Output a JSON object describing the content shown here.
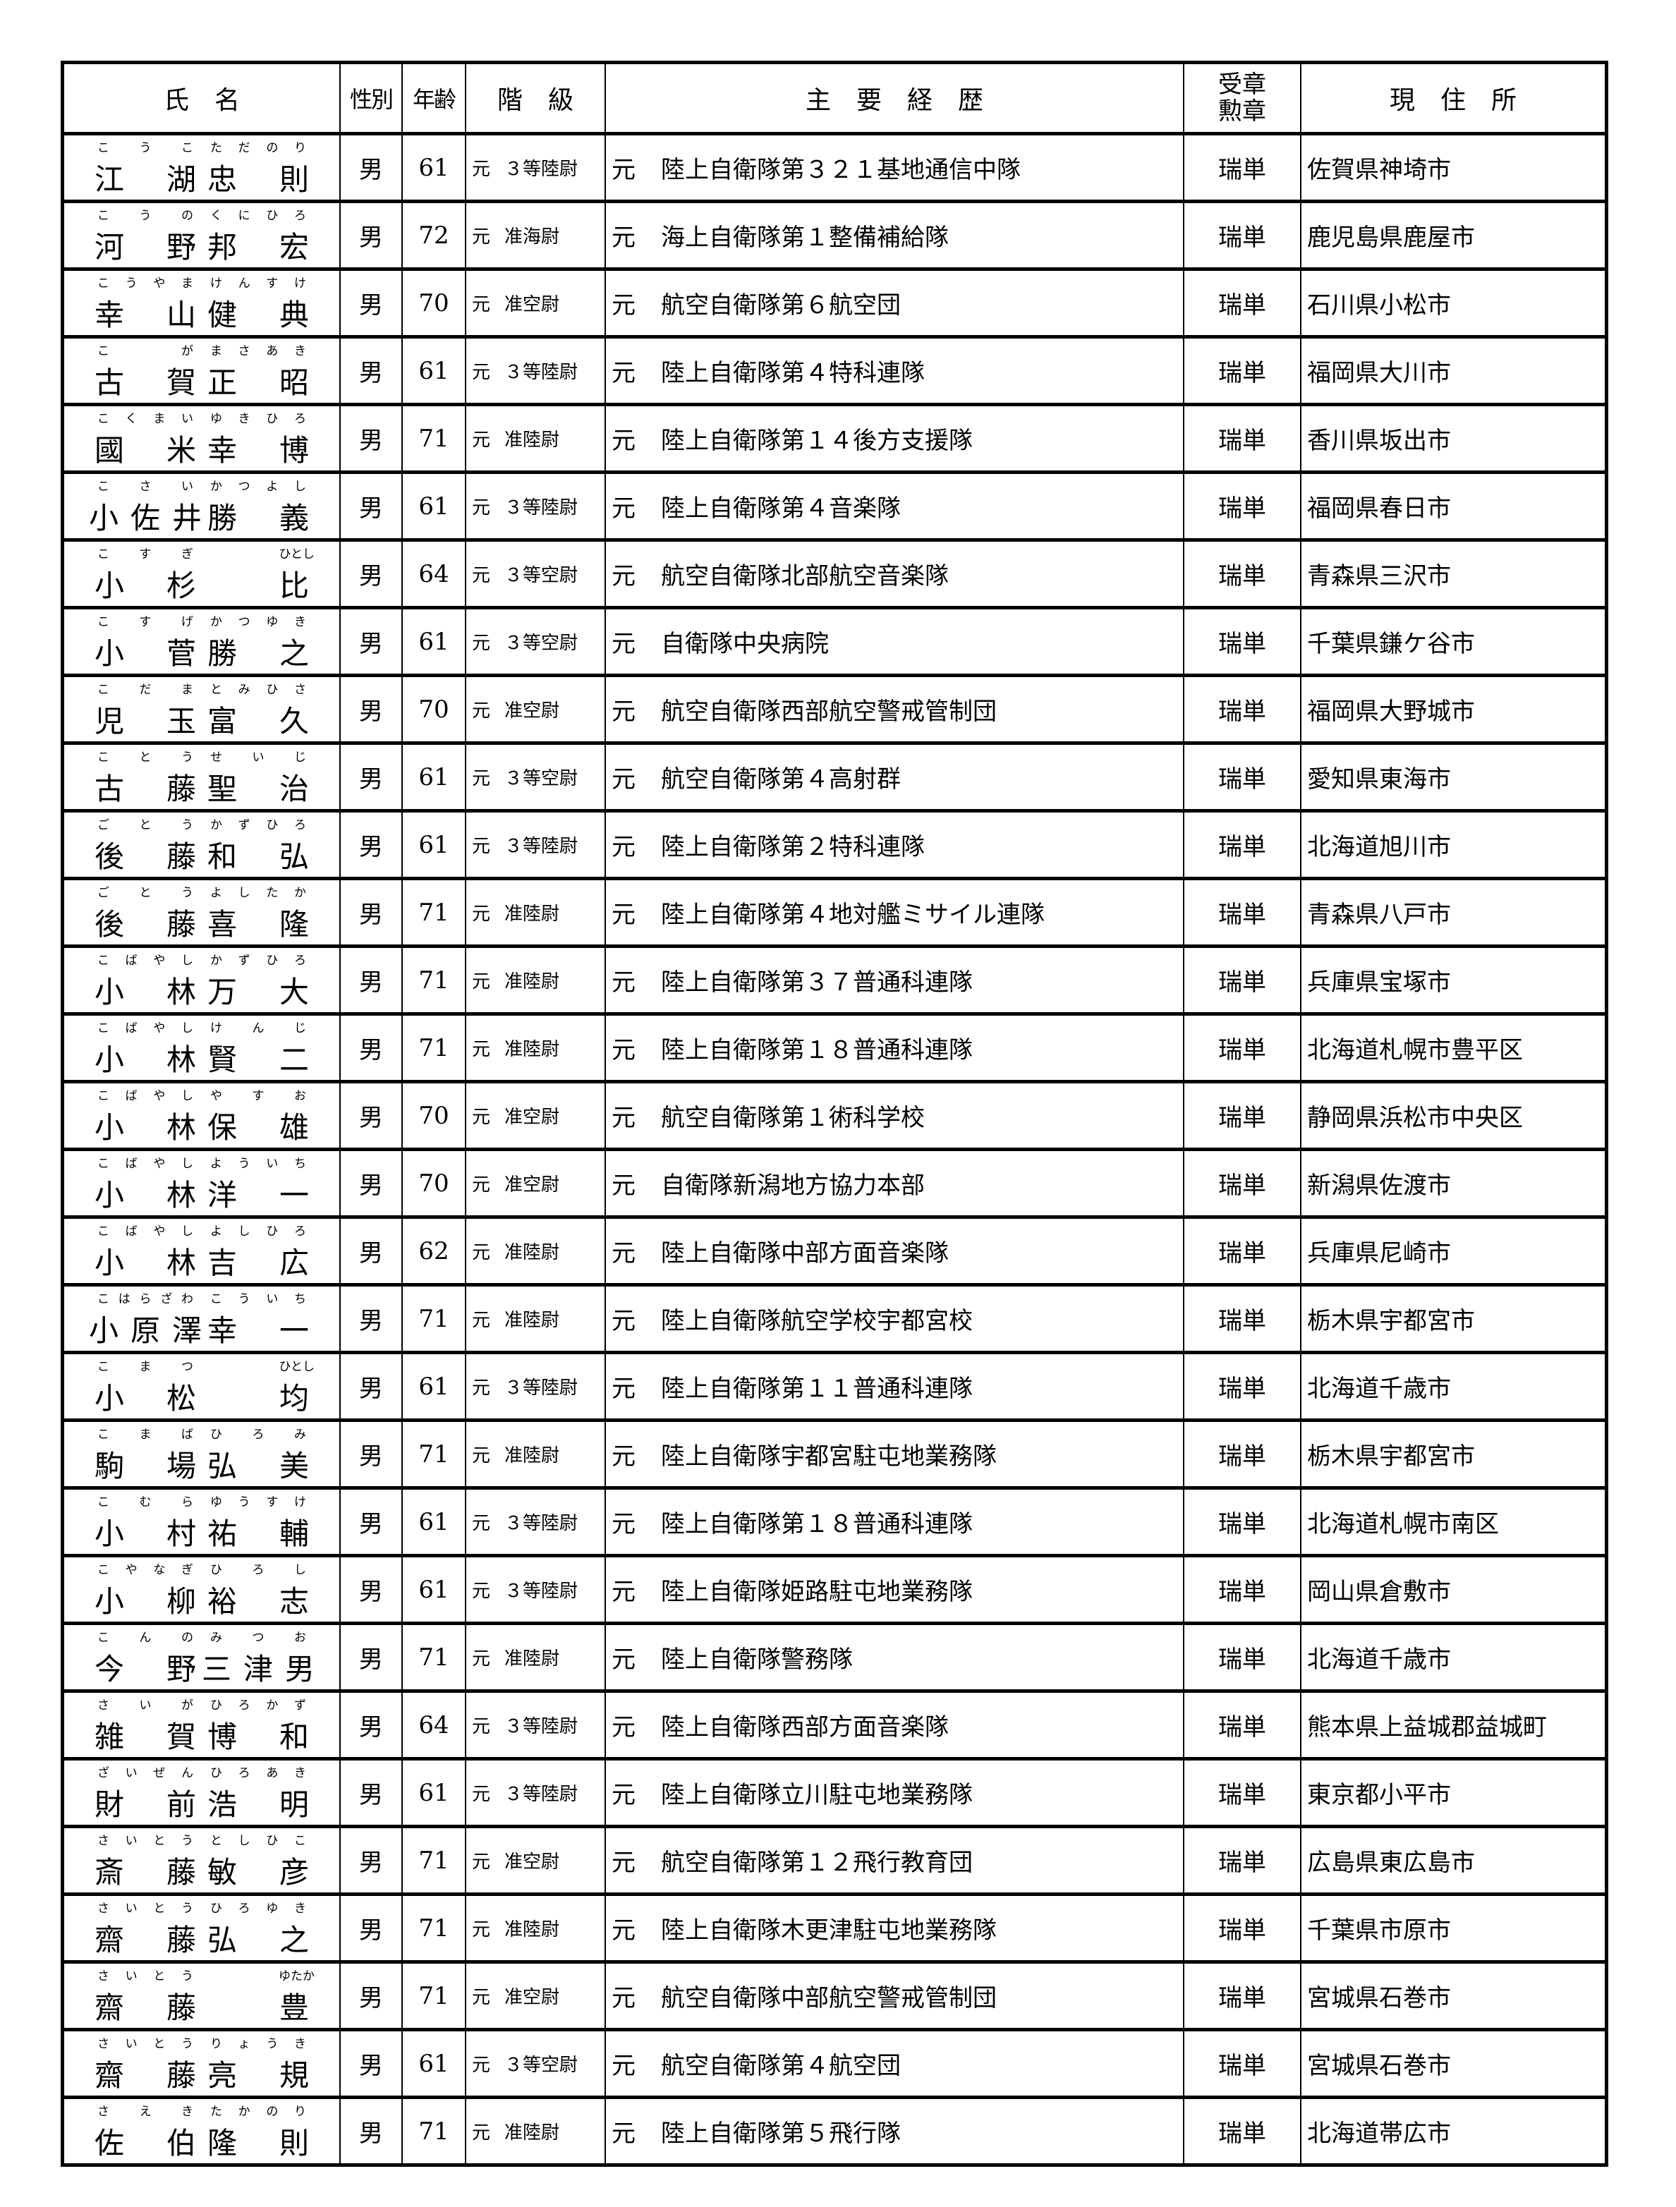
{
  "header": {
    "name": "氏　名",
    "sex": "性別",
    "age": "年齢",
    "rank": "階　級",
    "career": "主　要　経　歴",
    "award_line1": "受章",
    "award_line2": "勲章",
    "address": "現　住　所"
  },
  "former": "元",
  "rows": [
    {
      "family": "江湖",
      "family_ruby": "こうこ",
      "given": "忠則",
      "given_ruby": "ただのり",
      "sex": "男",
      "age": "61",
      "rank": "３等陸尉",
      "career": "陸上自衛隊第３２１基地通信中隊",
      "award": "瑞単",
      "address": "佐賀県神埼市"
    },
    {
      "family": "河野",
      "family_ruby": "こうの",
      "given": "邦宏",
      "given_ruby": "くにひろ",
      "sex": "男",
      "age": "72",
      "rank": "准海尉",
      "career": "海上自衛隊第１整備補給隊",
      "award": "瑞単",
      "address": "鹿児島県鹿屋市"
    },
    {
      "family": "幸山",
      "family_ruby": "こうやま",
      "given": "健典",
      "given_ruby": "けんすけ",
      "sex": "男",
      "age": "70",
      "rank": "准空尉",
      "career": "航空自衛隊第６航空団",
      "award": "瑞単",
      "address": "石川県小松市"
    },
    {
      "family": "古賀",
      "family_ruby": "こが",
      "given": "正昭",
      "given_ruby": "まさあき",
      "sex": "男",
      "age": "61",
      "rank": "３等陸尉",
      "career": "陸上自衛隊第４特科連隊",
      "award": "瑞単",
      "address": "福岡県大川市"
    },
    {
      "family": "國米",
      "family_ruby": "こくまい",
      "given": "幸博",
      "given_ruby": "ゆきひろ",
      "sex": "男",
      "age": "71",
      "rank": "准陸尉",
      "career": "陸上自衛隊第１４後方支援隊",
      "award": "瑞単",
      "address": "香川県坂出市"
    },
    {
      "family": "小佐井",
      "family_ruby": "こさい",
      "given": "勝義",
      "given_ruby": "かつよし",
      "sex": "男",
      "age": "61",
      "rank": "３等陸尉",
      "career": "陸上自衛隊第４音楽隊",
      "award": "瑞単",
      "address": "福岡県春日市"
    },
    {
      "family": "小杉",
      "family_ruby": "こすぎ",
      "given": "比",
      "given_ruby": "ひとし",
      "sex": "男",
      "age": "64",
      "rank": "３等空尉",
      "career": "航空自衛隊北部航空音楽隊",
      "award": "瑞単",
      "address": "青森県三沢市"
    },
    {
      "family": "小菅",
      "family_ruby": "こすげ",
      "given": "勝之",
      "given_ruby": "かつゆき",
      "sex": "男",
      "age": "61",
      "rank": "３等空尉",
      "career": "自衛隊中央病院",
      "award": "瑞単",
      "address": "千葉県鎌ケ谷市"
    },
    {
      "family": "児玉",
      "family_ruby": "こだま",
      "given": "富久",
      "given_ruby": "とみひさ",
      "sex": "男",
      "age": "70",
      "rank": "准空尉",
      "career": "航空自衛隊西部航空警戒管制団",
      "award": "瑞単",
      "address": "福岡県大野城市"
    },
    {
      "family": "古藤",
      "family_ruby": "ことう",
      "given": "聖治",
      "given_ruby": "せいじ",
      "sex": "男",
      "age": "61",
      "rank": "３等空尉",
      "career": "航空自衛隊第４高射群",
      "award": "瑞単",
      "address": "愛知県東海市"
    },
    {
      "family": "後藤",
      "family_ruby": "ごとう",
      "given": "和弘",
      "given_ruby": "かずひろ",
      "sex": "男",
      "age": "61",
      "rank": "３等陸尉",
      "career": "陸上自衛隊第２特科連隊",
      "award": "瑞単",
      "address": "北海道旭川市"
    },
    {
      "family": "後藤",
      "family_ruby": "ごとう",
      "given": "喜隆",
      "given_ruby": "よしたか",
      "sex": "男",
      "age": "71",
      "rank": "准陸尉",
      "career": "陸上自衛隊第４地対艦ミサイル連隊",
      "award": "瑞単",
      "address": "青森県八戸市"
    },
    {
      "family": "小林",
      "family_ruby": "こばやし",
      "given": "万大",
      "given_ruby": "かずひろ",
      "sex": "男",
      "age": "71",
      "rank": "准陸尉",
      "career": "陸上自衛隊第３７普通科連隊",
      "award": "瑞単",
      "address": "兵庫県宝塚市"
    },
    {
      "family": "小林",
      "family_ruby": "こばやし",
      "given": "賢二",
      "given_ruby": "けんじ",
      "sex": "男",
      "age": "71",
      "rank": "准陸尉",
      "career": "陸上自衛隊第１８普通科連隊",
      "award": "瑞単",
      "address": "北海道札幌市豊平区"
    },
    {
      "family": "小林",
      "family_ruby": "こばやし",
      "given": "保雄",
      "given_ruby": "やすお",
      "sex": "男",
      "age": "70",
      "rank": "准空尉",
      "career": "航空自衛隊第１術科学校",
      "award": "瑞単",
      "address": "静岡県浜松市中央区"
    },
    {
      "family": "小林",
      "family_ruby": "こばやし",
      "given": "洋一",
      "given_ruby": "よういち",
      "sex": "男",
      "age": "70",
      "rank": "准空尉",
      "career": "自衛隊新潟地方協力本部",
      "award": "瑞単",
      "address": "新潟県佐渡市"
    },
    {
      "family": "小林",
      "family_ruby": "こばやし",
      "given": "吉広",
      "given_ruby": "よしひろ",
      "sex": "男",
      "age": "62",
      "rank": "准陸尉",
      "career": "陸上自衛隊中部方面音楽隊",
      "award": "瑞単",
      "address": "兵庫県尼崎市"
    },
    {
      "family": "小原澤",
      "family_ruby": "こはらざわ",
      "given": "幸一",
      "given_ruby": "こういち",
      "sex": "男",
      "age": "71",
      "rank": "准陸尉",
      "career": "陸上自衛隊航空学校宇都宮校",
      "award": "瑞単",
      "address": "栃木県宇都宮市"
    },
    {
      "family": "小松",
      "family_ruby": "こまつ",
      "given": "均",
      "given_ruby": "ひとし",
      "sex": "男",
      "age": "61",
      "rank": "３等陸尉",
      "career": "陸上自衛隊第１１普通科連隊",
      "award": "瑞単",
      "address": "北海道千歳市"
    },
    {
      "family": "駒場",
      "family_ruby": "こまば",
      "given": "弘美",
      "given_ruby": "ひろみ",
      "sex": "男",
      "age": "71",
      "rank": "准陸尉",
      "career": "陸上自衛隊宇都宮駐屯地業務隊",
      "award": "瑞単",
      "address": "栃木県宇都宮市"
    },
    {
      "family": "小村",
      "family_ruby": "こむら",
      "given": "祐輔",
      "given_ruby": "ゆうすけ",
      "sex": "男",
      "age": "61",
      "rank": "３等陸尉",
      "career": "陸上自衛隊第１８普通科連隊",
      "award": "瑞単",
      "address": "北海道札幌市南区"
    },
    {
      "family": "小柳",
      "family_ruby": "こやなぎ",
      "given": "裕志",
      "given_ruby": "ひろし",
      "sex": "男",
      "age": "61",
      "rank": "３等陸尉",
      "career": "陸上自衛隊姫路駐屯地業務隊",
      "award": "瑞単",
      "address": "岡山県倉敷市"
    },
    {
      "family": "今野",
      "family_ruby": "こんの",
      "given": "三津男",
      "given_ruby": "みつお",
      "sex": "男",
      "age": "71",
      "rank": "准陸尉",
      "career": "陸上自衛隊警務隊",
      "award": "瑞単",
      "address": "北海道千歳市"
    },
    {
      "family": "雑賀",
      "family_ruby": "さいが",
      "given": "博和",
      "given_ruby": "ひろかず",
      "sex": "男",
      "age": "64",
      "rank": "３等陸尉",
      "career": "陸上自衛隊西部方面音楽隊",
      "award": "瑞単",
      "address": "熊本県上益城郡益城町"
    },
    {
      "family": "財前",
      "family_ruby": "ざいぜん",
      "given": "浩明",
      "given_ruby": "ひろあき",
      "sex": "男",
      "age": "61",
      "rank": "３等陸尉",
      "career": "陸上自衛隊立川駐屯地業務隊",
      "award": "瑞単",
      "address": "東京都小平市"
    },
    {
      "family": "斎藤",
      "family_ruby": "さいとう",
      "given": "敏彦",
      "given_ruby": "としひこ",
      "sex": "男",
      "age": "71",
      "rank": "准空尉",
      "career": "航空自衛隊第１２飛行教育団",
      "award": "瑞単",
      "address": "広島県東広島市"
    },
    {
      "family": "齋藤",
      "family_ruby": "さいとう",
      "given": "弘之",
      "given_ruby": "ひろゆき",
      "sex": "男",
      "age": "71",
      "rank": "准陸尉",
      "career": "陸上自衛隊木更津駐屯地業務隊",
      "award": "瑞単",
      "address": "千葉県市原市"
    },
    {
      "family": "齋藤",
      "family_ruby": "さいとう",
      "given": "豊",
      "given_ruby": "ゆたか",
      "sex": "男",
      "age": "71",
      "rank": "准空尉",
      "career": "航空自衛隊中部航空警戒管制団",
      "award": "瑞単",
      "address": "宮城県石巻市"
    },
    {
      "family": "齋藤",
      "family_ruby": "さいとう",
      "given": "亮規",
      "given_ruby": "りょうき",
      "sex": "男",
      "age": "61",
      "rank": "３等空尉",
      "career": "航空自衛隊第４航空団",
      "award": "瑞単",
      "address": "宮城県石巻市"
    },
    {
      "family": "佐伯",
      "family_ruby": "さえき",
      "given": "隆則",
      "given_ruby": "たかのり",
      "sex": "男",
      "age": "71",
      "rank": "准陸尉",
      "career": "陸上自衛隊第５飛行隊",
      "award": "瑞単",
      "address": "北海道帯広市"
    }
  ]
}
